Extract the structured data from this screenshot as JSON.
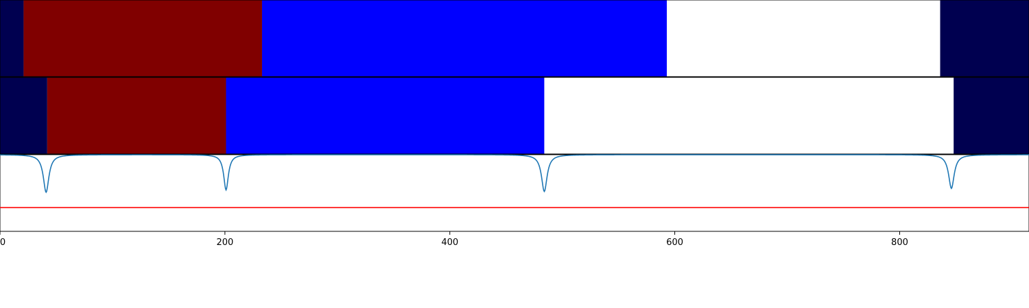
{
  "chart_data": {
    "type": "heatmap",
    "xlim": [
      0,
      915
    ],
    "x_ticks": [
      0,
      200,
      400,
      600,
      800
    ],
    "x_tick_labels": [
      "0",
      "200",
      "400",
      "600",
      "800"
    ],
    "title": "",
    "xlabel": "",
    "ylabel": "",
    "grid": false,
    "colors": {
      "navy": "#000050",
      "dark_red": "#800000",
      "blue": "#0000ff",
      "white": "#ffffff",
      "curve": "#1f77b4",
      "threshold": "#ff0000"
    },
    "segment_rows": [
      {
        "name": "row-1",
        "segments": [
          {
            "start": 0,
            "end": 21,
            "color": "#000050"
          },
          {
            "start": 21,
            "end": 233,
            "color": "#800000"
          },
          {
            "start": 233,
            "end": 593,
            "color": "#0000ff"
          },
          {
            "start": 593,
            "end": 836,
            "color": "#ffffff"
          },
          {
            "start": 836,
            "end": 915,
            "color": "#000050"
          }
        ]
      },
      {
        "name": "row-2",
        "segments": [
          {
            "start": 0,
            "end": 42,
            "color": "#000050"
          },
          {
            "start": 42,
            "end": 201,
            "color": "#800000"
          },
          {
            "start": 201,
            "end": 484,
            "color": "#0000ff"
          },
          {
            "start": 484,
            "end": 848,
            "color": "#ffffff"
          },
          {
            "start": 848,
            "end": 915,
            "color": "#000050"
          }
        ]
      }
    ],
    "curve_panel": {
      "ylim": [
        0,
        1
      ],
      "threshold": 0.31,
      "baseline": 1.0,
      "dips": [
        {
          "x": 41,
          "min": 0.51,
          "width": 3
        },
        {
          "x": 201,
          "min": 0.54,
          "width": 2.5
        },
        {
          "x": 484,
          "min": 0.52,
          "width": 3
        },
        {
          "x": 846,
          "min": 0.56,
          "width": 3
        }
      ]
    }
  }
}
